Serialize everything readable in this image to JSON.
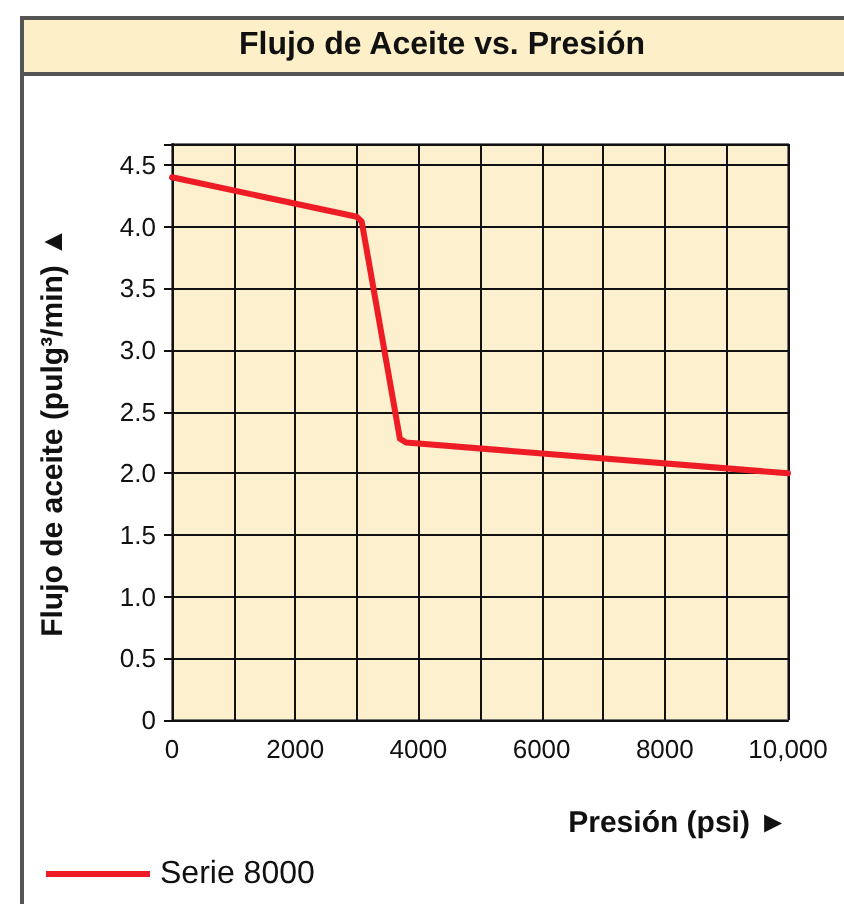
{
  "chart_data": {
    "type": "line",
    "title": "Flujo de Aceite vs. Presión",
    "xlabel": "Presión (psi) ►",
    "ylabel": "Flujo de aceite (pulg³/min) ▲",
    "series": [
      {
        "name": "Serie 8000",
        "color": "#ee1c25",
        "x": [
          0,
          3000,
          3080,
          3700,
          3800,
          10000
        ],
        "values": [
          4.4,
          4.08,
          4.04,
          2.28,
          2.25,
          2.0
        ]
      }
    ],
    "xlim": [
      0,
      10000
    ],
    "xticks": [
      0,
      2000,
      4000,
      6000,
      8000,
      {
        "value": 10000,
        "label": "10,000"
      }
    ],
    "ylim": [
      0,
      4.67
    ],
    "yticks": [
      0,
      {
        "value": 0.5,
        "label": "0.5"
      },
      {
        "value": 1,
        "label": "1.0"
      },
      {
        "value": 1.5,
        "label": "1.5"
      },
      {
        "value": 2,
        "label": "2.0"
      },
      {
        "value": 2.5,
        "label": "2.5"
      },
      {
        "value": 3,
        "label": "3.0"
      },
      {
        "value": 3.5,
        "label": "3.5"
      },
      {
        "value": 4,
        "label": "4.0"
      },
      {
        "value": 4.5,
        "label": "4.5"
      }
    ],
    "grid": true,
    "legend": "bottom left",
    "marker": "none",
    "line_style": "solid"
  }
}
